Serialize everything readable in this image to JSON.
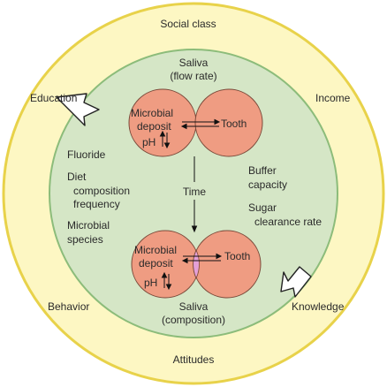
{
  "outer": {
    "top": "Social class",
    "bottom": "Attitudes",
    "left_top": "Education",
    "right_top": "Income",
    "left_bottom": "Behavior",
    "right_bottom": "Knowledge"
  },
  "inner": {
    "saliva_top_line1": "Saliva",
    "saliva_top_line2": "(flow rate)",
    "saliva_bottom_line1": "Saliva",
    "saliva_bottom_line2": "(composition)",
    "fluoride": "Fluoride",
    "diet": "Diet",
    "diet_detail1": "composition",
    "diet_detail2": "frequency",
    "microbial": "Microbial",
    "species": "species",
    "buffer": "Buffer",
    "capacity": "capacity",
    "sugar": "Sugar",
    "clearance": "clearance rate",
    "time": "Time"
  },
  "top_pair": {
    "deposit_line1": "Microbial",
    "deposit_line2": "deposit",
    "ph": "pH",
    "tooth": "Tooth"
  },
  "bottom_pair": {
    "deposit_line1": "Microbial",
    "deposit_line2": "deposit",
    "ph": "pH",
    "tooth": "Tooth"
  },
  "colors": {
    "outer_fill": "#fdf7c3",
    "outer_stroke": "#e8d24a",
    "inner_fill": "#d5e6c6",
    "inner_stroke": "#8cbc7a",
    "circle_fill": "#ef9c82",
    "circle_stroke": "#7a4a3a",
    "overlap_fill": "#e4a0d8"
  }
}
